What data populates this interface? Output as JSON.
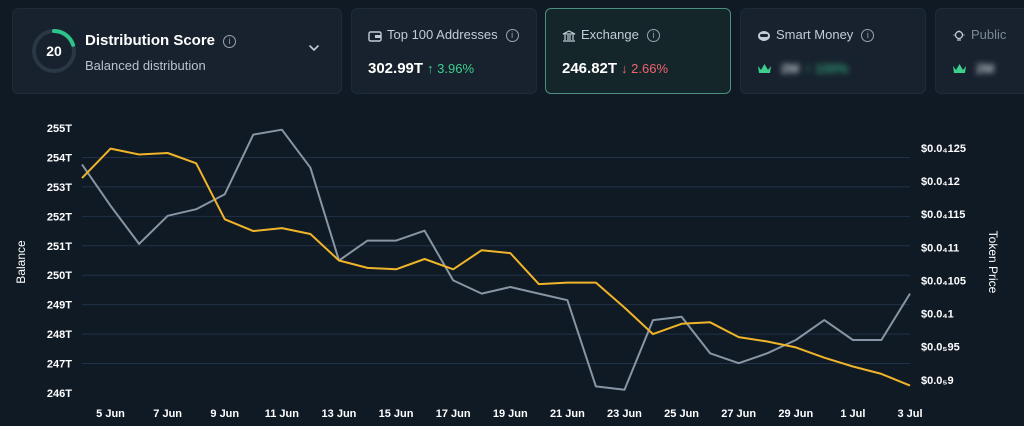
{
  "score_card": {
    "score": "20",
    "title": "Distribution Score",
    "subtitle": "Balanced distribution",
    "ring_fraction": 0.2,
    "ring_color": "#2ec38a"
  },
  "metrics": [
    {
      "label": "Top 100 Addresses",
      "icon": "wallet-icon",
      "value": "302.99T",
      "change": "↑ 3.96%",
      "direction": "up"
    },
    {
      "label": "Exchange",
      "icon": "bank-icon",
      "value": "246.82T",
      "change": "↓ 2.66%",
      "direction": "down"
    },
    {
      "label": "Smart Money",
      "icon": "robot-icon",
      "value": "2M",
      "change": "↑ 100%",
      "direction": "up",
      "locked": true
    },
    {
      "label": "Public",
      "icon": "bulb-icon",
      "value": "2M",
      "locked": true
    }
  ],
  "chart_data": {
    "type": "line",
    "x": [
      "4 Jun",
      "5 Jun",
      "6 Jun",
      "7 Jun",
      "8 Jun",
      "9 Jun",
      "10 Jun",
      "11 Jun",
      "12 Jun",
      "13 Jun",
      "14 Jun",
      "15 Jun",
      "16 Jun",
      "17 Jun",
      "18 Jun",
      "19 Jun",
      "20 Jun",
      "21 Jun",
      "22 Jun",
      "23 Jun",
      "24 Jun",
      "25 Jun",
      "26 Jun",
      "27 Jun",
      "28 Jun",
      "29 Jun",
      "30 Jun",
      "1 Jul",
      "2 Jul",
      "3 Jul"
    ],
    "x_ticks": [
      "5 Jun",
      "7 Jun",
      "9 Jun",
      "11 Jun",
      "13 Jun",
      "15 Jun",
      "17 Jun",
      "19 Jun",
      "21 Jun",
      "23 Jun",
      "25 Jun",
      "27 Jun",
      "29 Jun",
      "1 Jul",
      "3 Jul"
    ],
    "y_left": {
      "label": "Balance",
      "ticks": [
        "255T",
        "254T",
        "253T",
        "252T",
        "251T",
        "250T",
        "249T",
        "248T",
        "247T",
        "246T"
      ],
      "range": [
        246,
        255
      ]
    },
    "y_right": {
      "label": "Token Price",
      "ticks": [
        "$0.0₄125",
        "$0.0₄12",
        "$0.0₄115",
        "$0.0₄11",
        "$0.0₄105",
        "$0.0₄1",
        "$0.0₅95",
        "$0.0₅9"
      ],
      "range": [
        8.8e-06,
        1.28e-05
      ]
    },
    "grid": true,
    "series": [
      {
        "axis": "left",
        "color": "#f0b429",
        "values": [
          253.3,
          254.3,
          254.1,
          254.15,
          253.8,
          251.9,
          251.5,
          251.6,
          251.4,
          250.5,
          250.25,
          250.2,
          250.55,
          250.2,
          250.85,
          250.75,
          249.7,
          249.75,
          249.75,
          248.9,
          248.0,
          248.35,
          248.4,
          247.9,
          247.75,
          247.55,
          247.2,
          246.9,
          246.65,
          246.25
        ]
      },
      {
        "axis": "right",
        "color": "#8795a4",
        "values": [
          1.225e-05,
          1.1625e-05,
          1.105e-05,
          1.1475e-05,
          1.1575e-05,
          1.18e-05,
          1.27e-05,
          1.2775e-05,
          1.22e-05,
          1.08e-05,
          1.11e-05,
          1.11e-05,
          1.125e-05,
          1.05e-05,
          1.03e-05,
          1.04e-05,
          1.03e-05,
          1.02e-05,
          8.9e-06,
          8.85e-06,
          9.9e-06,
          9.95e-06,
          9.4e-06,
          9.25e-06,
          9.4e-06,
          9.6e-06,
          9.9e-06,
          9.6e-06,
          9.6e-06,
          1.03e-05
        ]
      }
    ]
  }
}
